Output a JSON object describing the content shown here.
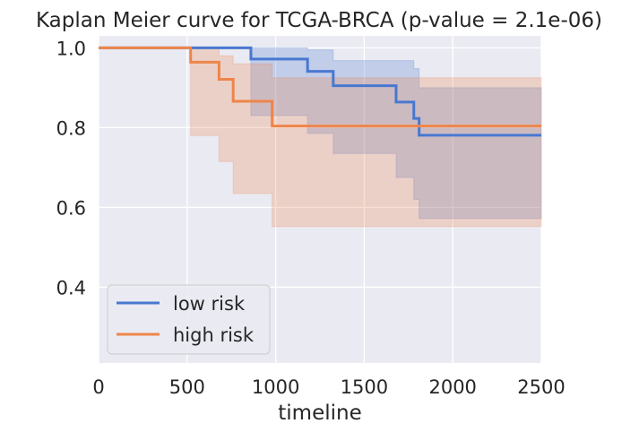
{
  "chart_data": {
    "type": "line",
    "title": "Kaplan Meier curve for TCGA-BRCA (p-value = 2.1e-06)",
    "xlabel": "timeline",
    "ylabel": "",
    "xlim": [
      0,
      2500
    ],
    "ylim": [
      0.21,
      1.03
    ],
    "xticks": [
      0,
      500,
      1000,
      1500,
      2000,
      2500
    ],
    "yticks": [
      0.4,
      0.6,
      0.8,
      1.0
    ],
    "xtick_labels": [
      "0",
      "500",
      "1000",
      "1500",
      "2000",
      "2500"
    ],
    "ytick_labels": [
      "0.4",
      "0.6",
      "0.8",
      "1.0"
    ],
    "grid": true,
    "legend_position": "bottom-left",
    "background": "#eaeaf2",
    "series": [
      {
        "name": "low risk",
        "color": "#4878d0",
        "step_points": [
          [
            0,
            1.0
          ],
          [
            860,
            0.972
          ],
          [
            1180,
            0.941
          ],
          [
            1325,
            0.905
          ],
          [
            1680,
            0.864
          ],
          [
            1780,
            0.823
          ],
          [
            1810,
            0.781
          ],
          [
            2500,
            0.781
          ]
        ],
        "ci_upper": [
          [
            0,
            1.0
          ],
          [
            1180,
            0.995
          ],
          [
            1325,
            0.968
          ],
          [
            1780,
            0.948
          ],
          [
            1810,
            0.9
          ],
          [
            2500,
            0.9
          ]
        ],
        "ci_lower": [
          [
            0,
            1.0
          ],
          [
            860,
            0.83
          ],
          [
            1180,
            0.785
          ],
          [
            1325,
            0.735
          ],
          [
            1680,
            0.675
          ],
          [
            1780,
            0.62
          ],
          [
            1810,
            0.572
          ],
          [
            2500,
            0.572
          ]
        ]
      },
      {
        "name": "high risk",
        "color": "#ee854a",
        "step_points": [
          [
            0,
            1.0
          ],
          [
            520,
            0.964
          ],
          [
            680,
            0.921
          ],
          [
            760,
            0.866
          ],
          [
            980,
            0.804
          ],
          [
            2500,
            0.804
          ]
        ],
        "ci_upper": [
          [
            0,
            1.0
          ],
          [
            680,
            0.98
          ],
          [
            760,
            0.96
          ],
          [
            980,
            0.925
          ],
          [
            2500,
            0.925
          ]
        ],
        "ci_lower": [
          [
            0,
            1.0
          ],
          [
            520,
            0.78
          ],
          [
            680,
            0.715
          ],
          [
            760,
            0.635
          ],
          [
            980,
            0.552
          ],
          [
            2500,
            0.552
          ]
        ]
      }
    ]
  }
}
